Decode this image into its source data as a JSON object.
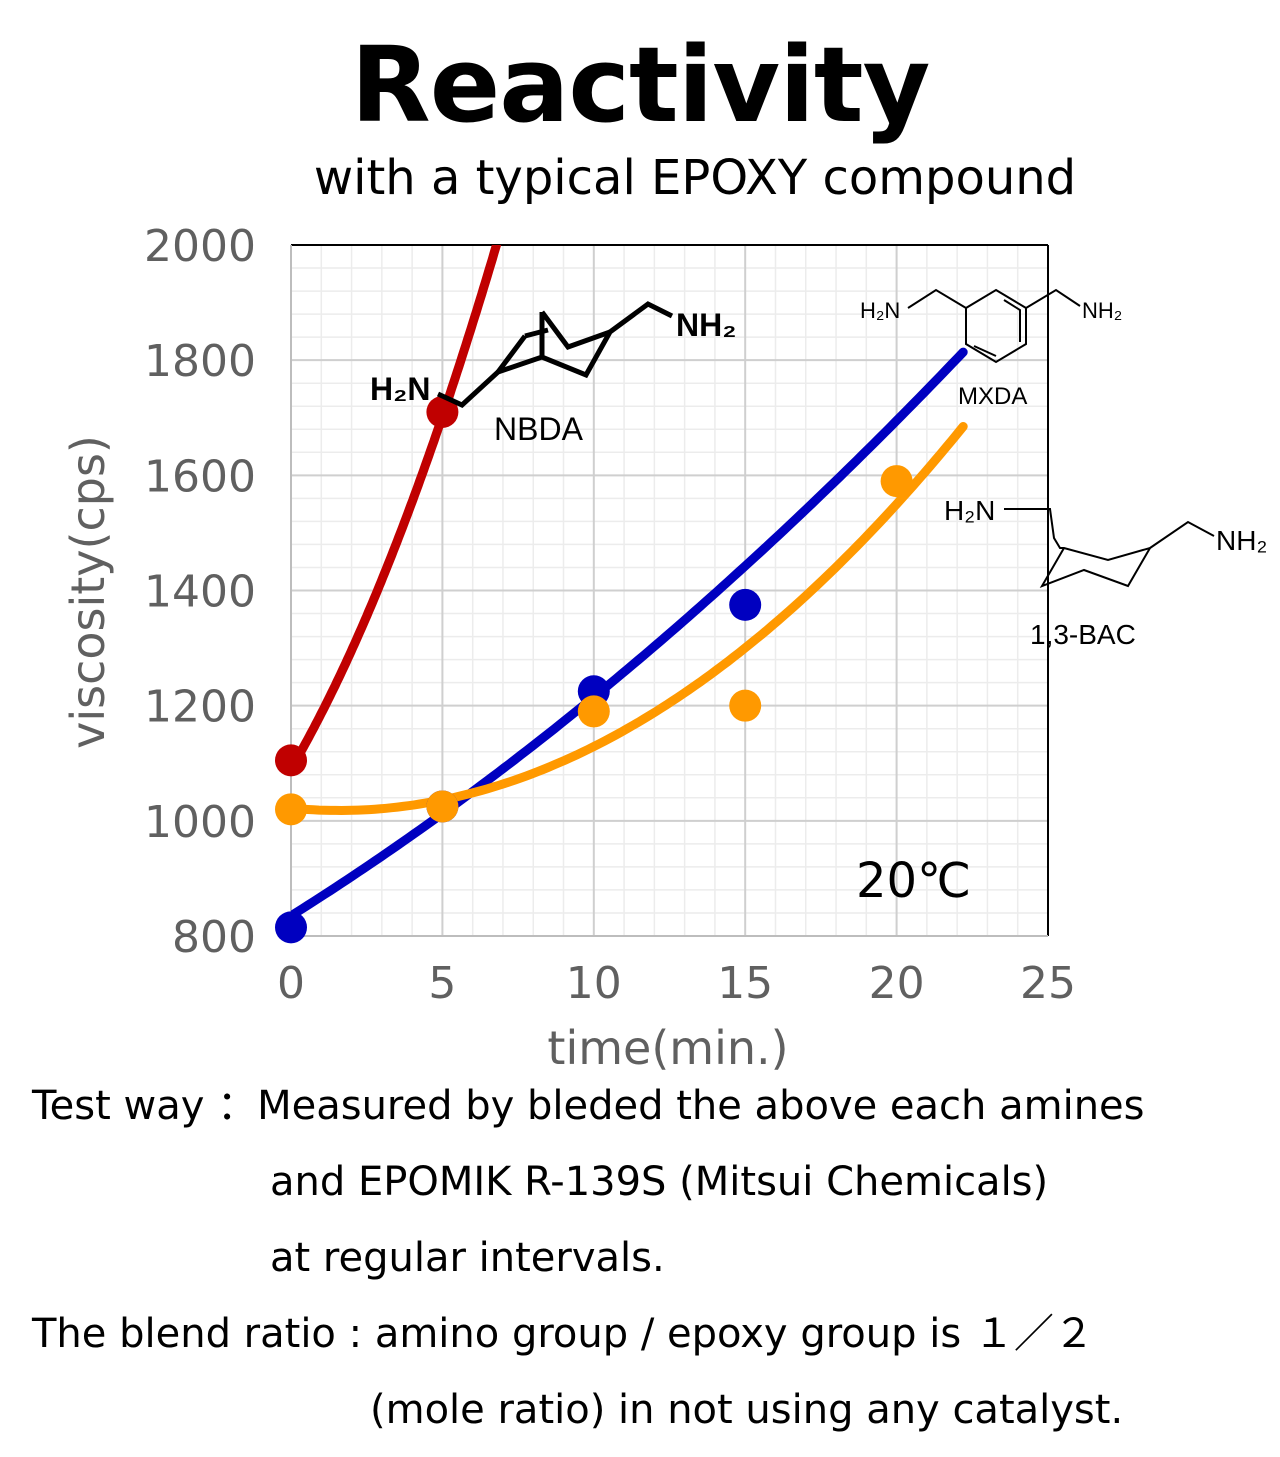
{
  "title": "Reactivity",
  "subtitle": "with a typical EPOXY compound",
  "chart_data": {
    "type": "scatter",
    "xlabel": "time(min.)",
    "ylabel": "viscosity(cps)",
    "xlim": [
      0,
      25
    ],
    "ylim": [
      800,
      2000
    ],
    "x_ticks": [
      "0",
      "5",
      "10",
      "15",
      "20",
      "25"
    ],
    "y_ticks": [
      "800",
      "1000",
      "1200",
      "1400",
      "1600",
      "1800",
      "2000"
    ],
    "grid": true,
    "annotation": "20℃",
    "series": [
      {
        "name": "NBDA",
        "color": "#c00000",
        "x": [
          0,
          5
        ],
        "y": [
          1105,
          1710
        ],
        "trend": {
          "x_end": 7,
          "coef": [
            1090,
            90,
            6.5
          ]
        }
      },
      {
        "name": "MXDA",
        "color": "#0000c0",
        "x": [
          0,
          5,
          10,
          15
        ],
        "y": [
          815,
          1025,
          1225,
          1375
        ],
        "trend": {
          "x_end": 22.2,
          "coef": [
            835,
            33,
            0.5
          ]
        }
      },
      {
        "name": "1,3-BAC",
        "color": "#ff9900",
        "x": [
          0,
          5,
          10,
          15,
          20
        ],
        "y": [
          1020,
          1025,
          1190,
          1200,
          1590
        ],
        "trend": {
          "x_end": 22.2,
          "coef": [
            1022,
            -5,
            1.57
          ]
        }
      }
    ],
    "molecules": {
      "nbda": {
        "name": "NBDA",
        "h2n": "H₂N",
        "nh2": "NH₂"
      },
      "mxda": {
        "name": "MXDA",
        "h2n": "H₂N",
        "nh2": "NH₂"
      },
      "bac": {
        "name": "1,3-BAC",
        "h2n": "H₂N",
        "nh2": "NH₂"
      }
    }
  },
  "notes": {
    "line1": "Test way ：Measured by bleded the above each amines",
    "line2": "and EPOMIK R-139S (Mitsui Chemicals)",
    "line3": "at regular intervals.",
    "line4": "The blend ratio : amino group / epoxy group is １／２",
    "line5": "(mole ratio) in not using any catalyst."
  }
}
